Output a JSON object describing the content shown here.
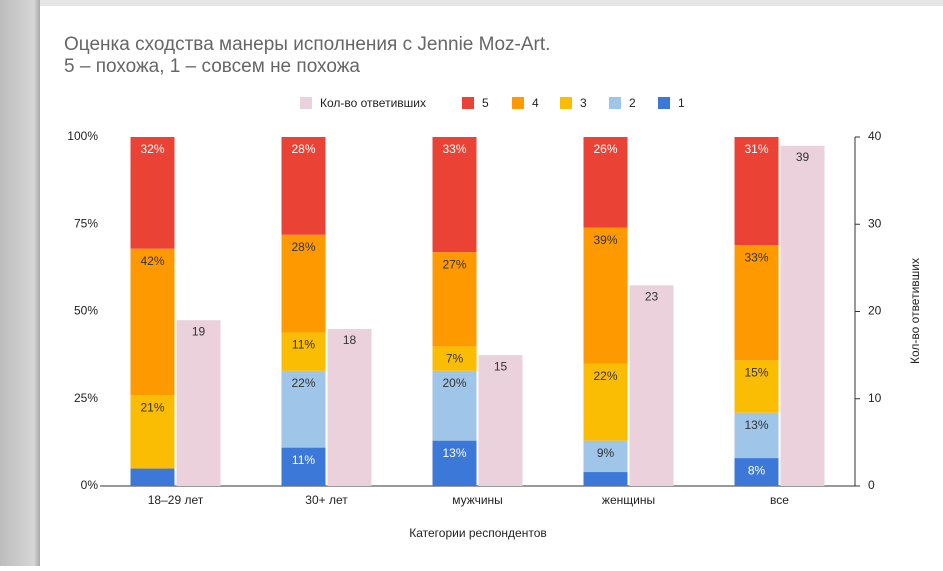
{
  "chart_data": {
    "type": "stacked_bar_with_count",
    "title": "Оценка сходства манеры исполнения с Jennie Moz-Art.",
    "subtitle": "5 – похожа, 1 – совсем не похожа",
    "xlabel": "Категории респондентов",
    "y2label": "Кол-во ответивших",
    "categories": [
      "18–29 лет",
      "30+ лет",
      "мужчины",
      "женщины",
      "все"
    ],
    "ylim": [
      0,
      100
    ],
    "yticks": [
      {
        "value": 0,
        "label": "0%"
      },
      {
        "value": 25,
        "label": "25%"
      },
      {
        "value": 50,
        "label": "50%"
      },
      {
        "value": 75,
        "label": "75%"
      },
      {
        "value": 100,
        "label": "100%"
      }
    ],
    "y2lim": [
      0,
      40
    ],
    "y2ticks": [
      0,
      10,
      20,
      30,
      40
    ],
    "series": [
      {
        "name": "Кол-во ответивших",
        "color": "#ead1dc",
        "axis": "y2",
        "label_color": "#333333",
        "values": [
          19,
          18,
          15,
          23,
          39
        ]
      },
      {
        "name": "5",
        "color": "#ea4335",
        "label_color": "#ffffff",
        "values": [
          32,
          28,
          33,
          26,
          31
        ],
        "value_labels": [
          "32%",
          "28%",
          "33%",
          "26%",
          "31%"
        ]
      },
      {
        "name": "4",
        "color": "#ff9900",
        "label_color": "#333333",
        "values": [
          42,
          28,
          27,
          39,
          33
        ],
        "value_labels": [
          "42%",
          "28%",
          "27%",
          "39%",
          "33%"
        ]
      },
      {
        "name": "3",
        "color": "#fbbc04",
        "label_color": "#333333",
        "values": [
          21,
          11,
          7,
          22,
          15
        ],
        "value_labels": [
          "21%",
          "11%",
          "7%",
          "22%",
          "15%"
        ]
      },
      {
        "name": "2",
        "color": "#9fc5e8",
        "label_color": "#333333",
        "values": [
          0,
          22,
          20,
          9,
          13
        ],
        "value_labels": [
          "0%",
          "22%",
          "20%",
          "9%",
          "13%"
        ]
      },
      {
        "name": "1",
        "color": "#3c78d8",
        "label_color": "#ffffff",
        "values": [
          5,
          11,
          13,
          4,
          8
        ],
        "value_labels": [
          "5%",
          "11%",
          "13%",
          "4%",
          "8%"
        ]
      }
    ]
  }
}
